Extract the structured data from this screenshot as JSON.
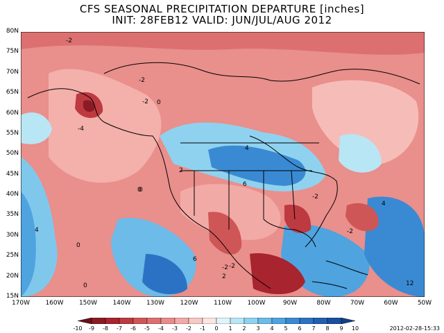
{
  "title": {
    "line1": "CFS SEASONAL PRECIPITATION DEPARTURE [inches]",
    "line2": "INIT: 28FEB12 VALID: JUN/JUL/AUG 2012"
  },
  "y_axis_labels": [
    "80N",
    "75N",
    "70N",
    "65N",
    "60N",
    "55N",
    "50N",
    "45N",
    "40N",
    "35N",
    "30N",
    "25N",
    "20N",
    "15N"
  ],
  "x_axis_labels": [
    "170W",
    "160W",
    "150W",
    "140W",
    "130W",
    "120W",
    "110W",
    "100W",
    "90W",
    "80W",
    "70W",
    "60W",
    "50W"
  ],
  "contour_labels": [
    "-2",
    "-2",
    "-2",
    "0",
    "-4",
    "0",
    "4",
    "2",
    "6",
    "-2",
    "4",
    "0",
    "0",
    "6",
    "-2",
    "2",
    "-2",
    "-2",
    "4",
    "0",
    "12"
  ],
  "colorbar": {
    "labels": [
      "-10",
      "-9",
      "-8",
      "-7",
      "-6",
      "-5",
      "-4",
      "-3",
      "-2",
      "-1",
      "0",
      "1",
      "2",
      "3",
      "4",
      "5",
      "6",
      "7",
      "8",
      "9",
      "10"
    ],
    "colors": [
      "#6b0f1a",
      "#8b1a24",
      "#a8242e",
      "#bd3a40",
      "#cf5656",
      "#dc7070",
      "#e88c8a",
      "#f2aaa6",
      "#f8c8c4",
      "#fde4e2",
      "#e0f4fb",
      "#b8e6f4",
      "#8fd2ef",
      "#6cbbe8",
      "#4fa3df",
      "#3a8ad3",
      "#2c72c4",
      "#2160b0",
      "#1a4f9b",
      "#143f85"
    ]
  },
  "stamp": "2012-02-28-15:33",
  "colors": {
    "deep_red": "#b43a3e",
    "red": "#e07f7e",
    "pink": "#f4b0ab",
    "light_blue": "#9fdcf0",
    "blue": "#4fa0dc",
    "deep_blue": "#2a6cc0"
  }
}
